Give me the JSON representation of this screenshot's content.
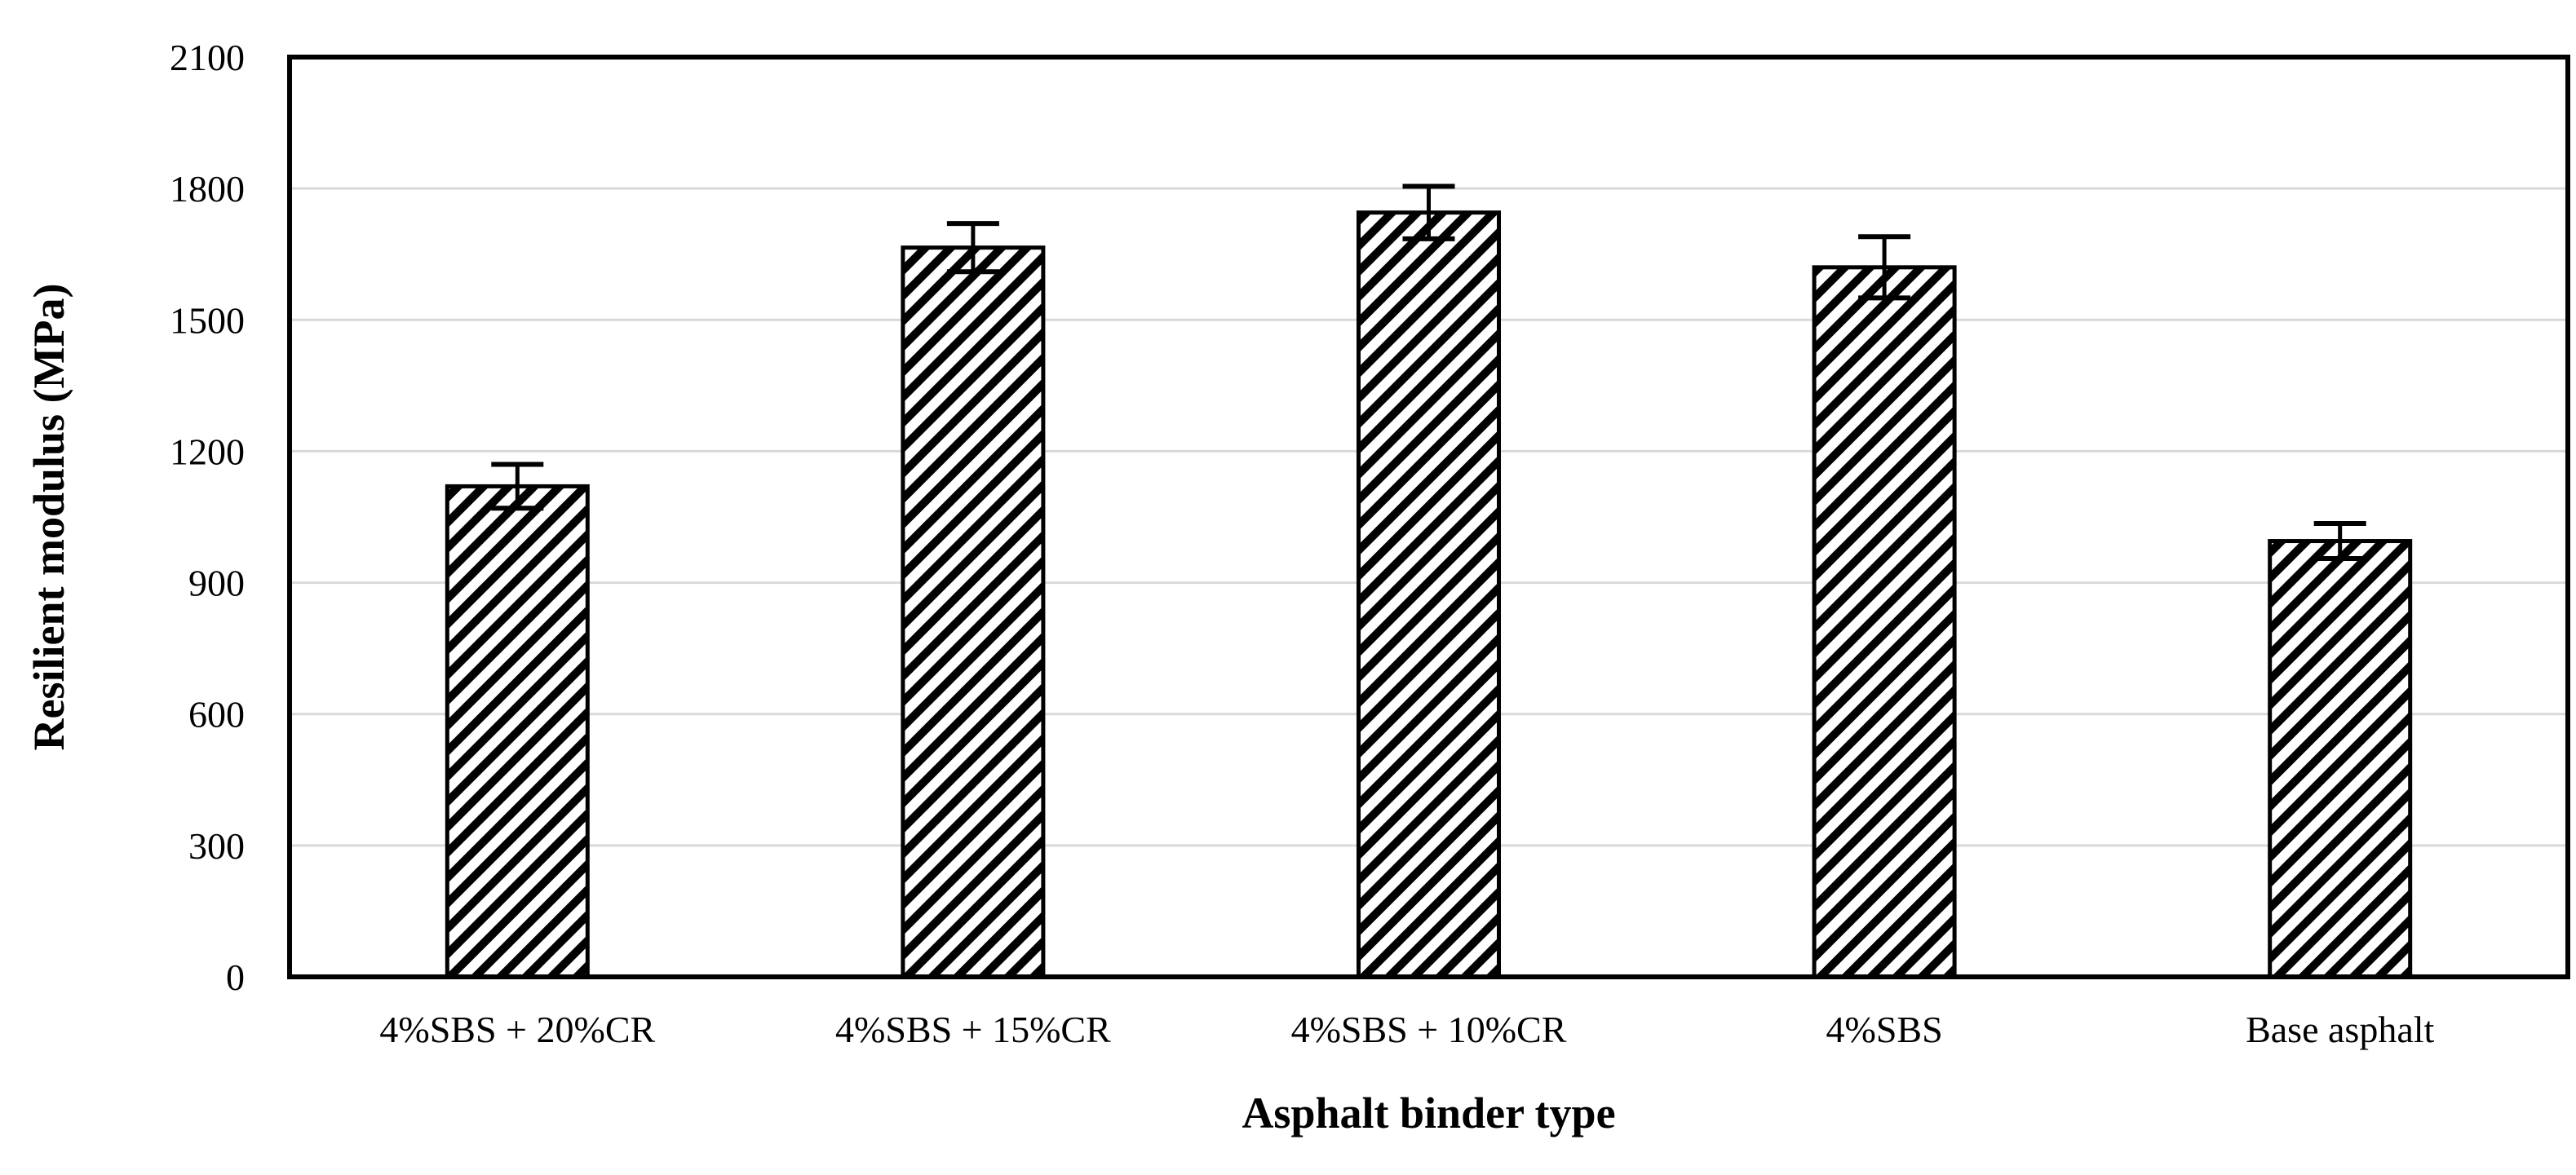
{
  "chart_data": {
    "type": "bar",
    "title": "",
    "xlabel": "Asphalt binder type",
    "ylabel": "Resilient modulus (MPa)",
    "categories": [
      "4%SBS + 20%CR",
      "4%SBS + 15%CR",
      "4%SBS + 10%CR",
      "4%SBS",
      "Base asphalt"
    ],
    "values": [
      1120,
      1665,
      1745,
      1620,
      995
    ],
    "error": [
      50,
      55,
      60,
      70,
      40
    ],
    "ylim": [
      0,
      2100
    ],
    "yticks": [
      "0",
      "300",
      "600",
      "900",
      "1200",
      "1500",
      "1800",
      "2100"
    ],
    "grid": true,
    "bar_pattern": "diagonal-hatch",
    "colors": {
      "bar_fill": "#ffffff",
      "hatch": "#000000",
      "grid": "#d9d9d9",
      "axis": "#000000"
    }
  }
}
